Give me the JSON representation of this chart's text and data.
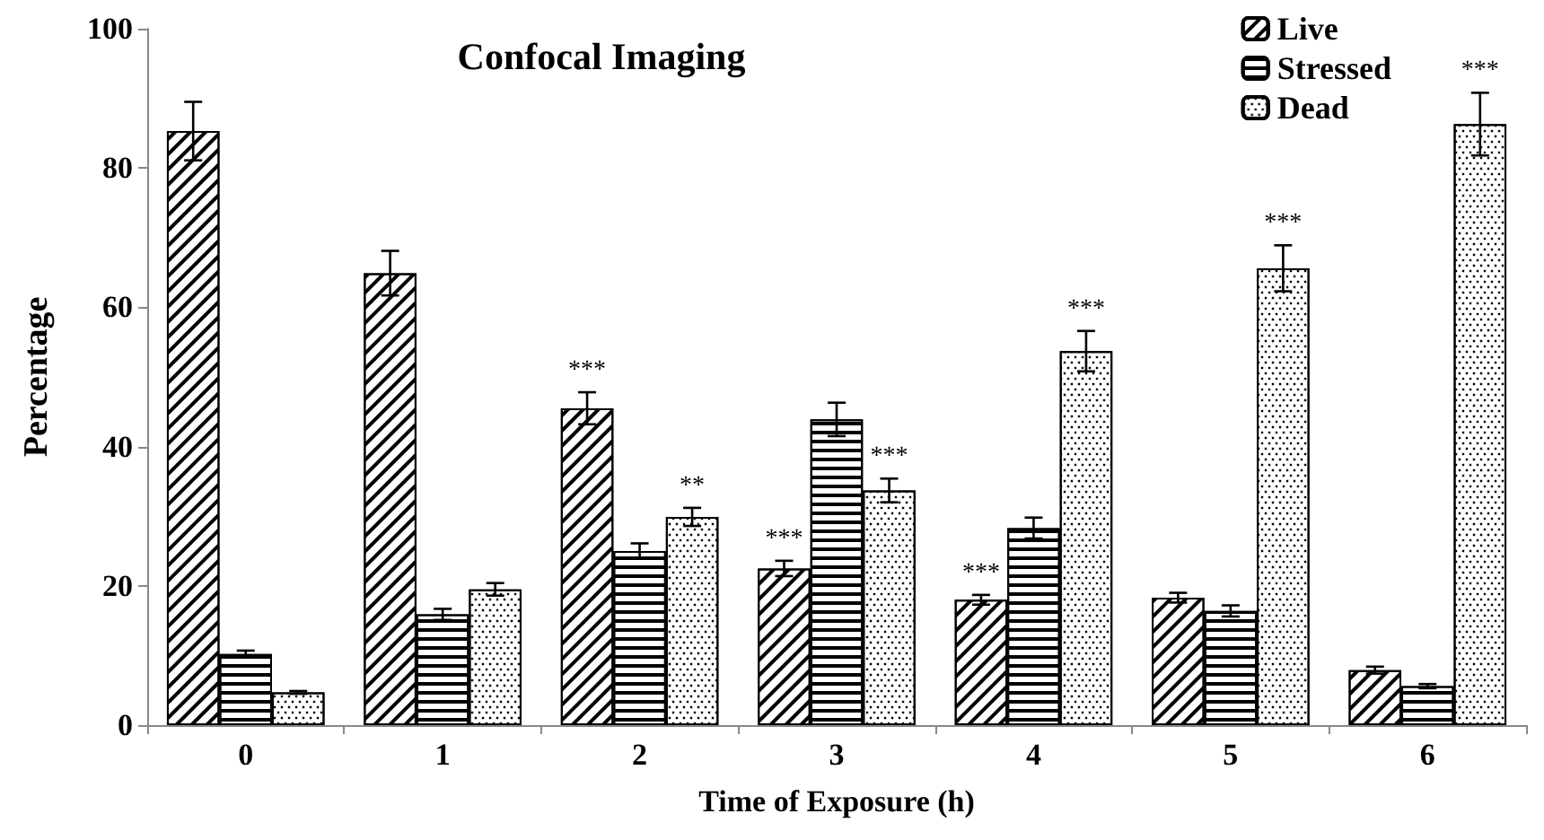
{
  "chart_data": {
    "type": "bar",
    "title": "Confocal Imaging",
    "xlabel": "Time of Exposure (h)",
    "ylabel": "Percentage",
    "categories": [
      "0",
      "1",
      "2",
      "3",
      "4",
      "5",
      "6"
    ],
    "series": [
      {
        "name": "Live",
        "color": "#000000",
        "values": [
          85.3,
          64.9,
          45.5,
          22.5,
          18.0,
          18.3,
          7.9
        ],
        "errors": [
          4.2,
          3.2,
          2.3,
          1.1,
          0.7,
          0.7,
          0.5
        ],
        "value_labels": [
          null,
          null,
          "***",
          "***",
          "***",
          null,
          null
        ]
      },
      {
        "name": "Stressed",
        "color": "#000000",
        "values": [
          10.2,
          15.9,
          25.0,
          43.9,
          28.3,
          16.4,
          5.6
        ],
        "errors": [
          0.5,
          0.8,
          1.1,
          2.4,
          1.5,
          0.8,
          0.3
        ]
      },
      {
        "name": "Dead",
        "color": "#000000",
        "values": [
          4.7,
          19.5,
          29.9,
          33.7,
          53.7,
          65.6,
          86.3
        ],
        "errors": [
          0.2,
          0.9,
          1.3,
          1.7,
          2.9,
          3.3,
          4.5
        ],
        "value_labels": [
          null,
          null,
          "**",
          "***",
          "***",
          "***",
          "***"
        ]
      }
    ],
    "ylim": [
      0,
      100
    ],
    "yticks": [
      0,
      20,
      40,
      60,
      80,
      100
    ],
    "grid": false,
    "legend": "top right"
  }
}
